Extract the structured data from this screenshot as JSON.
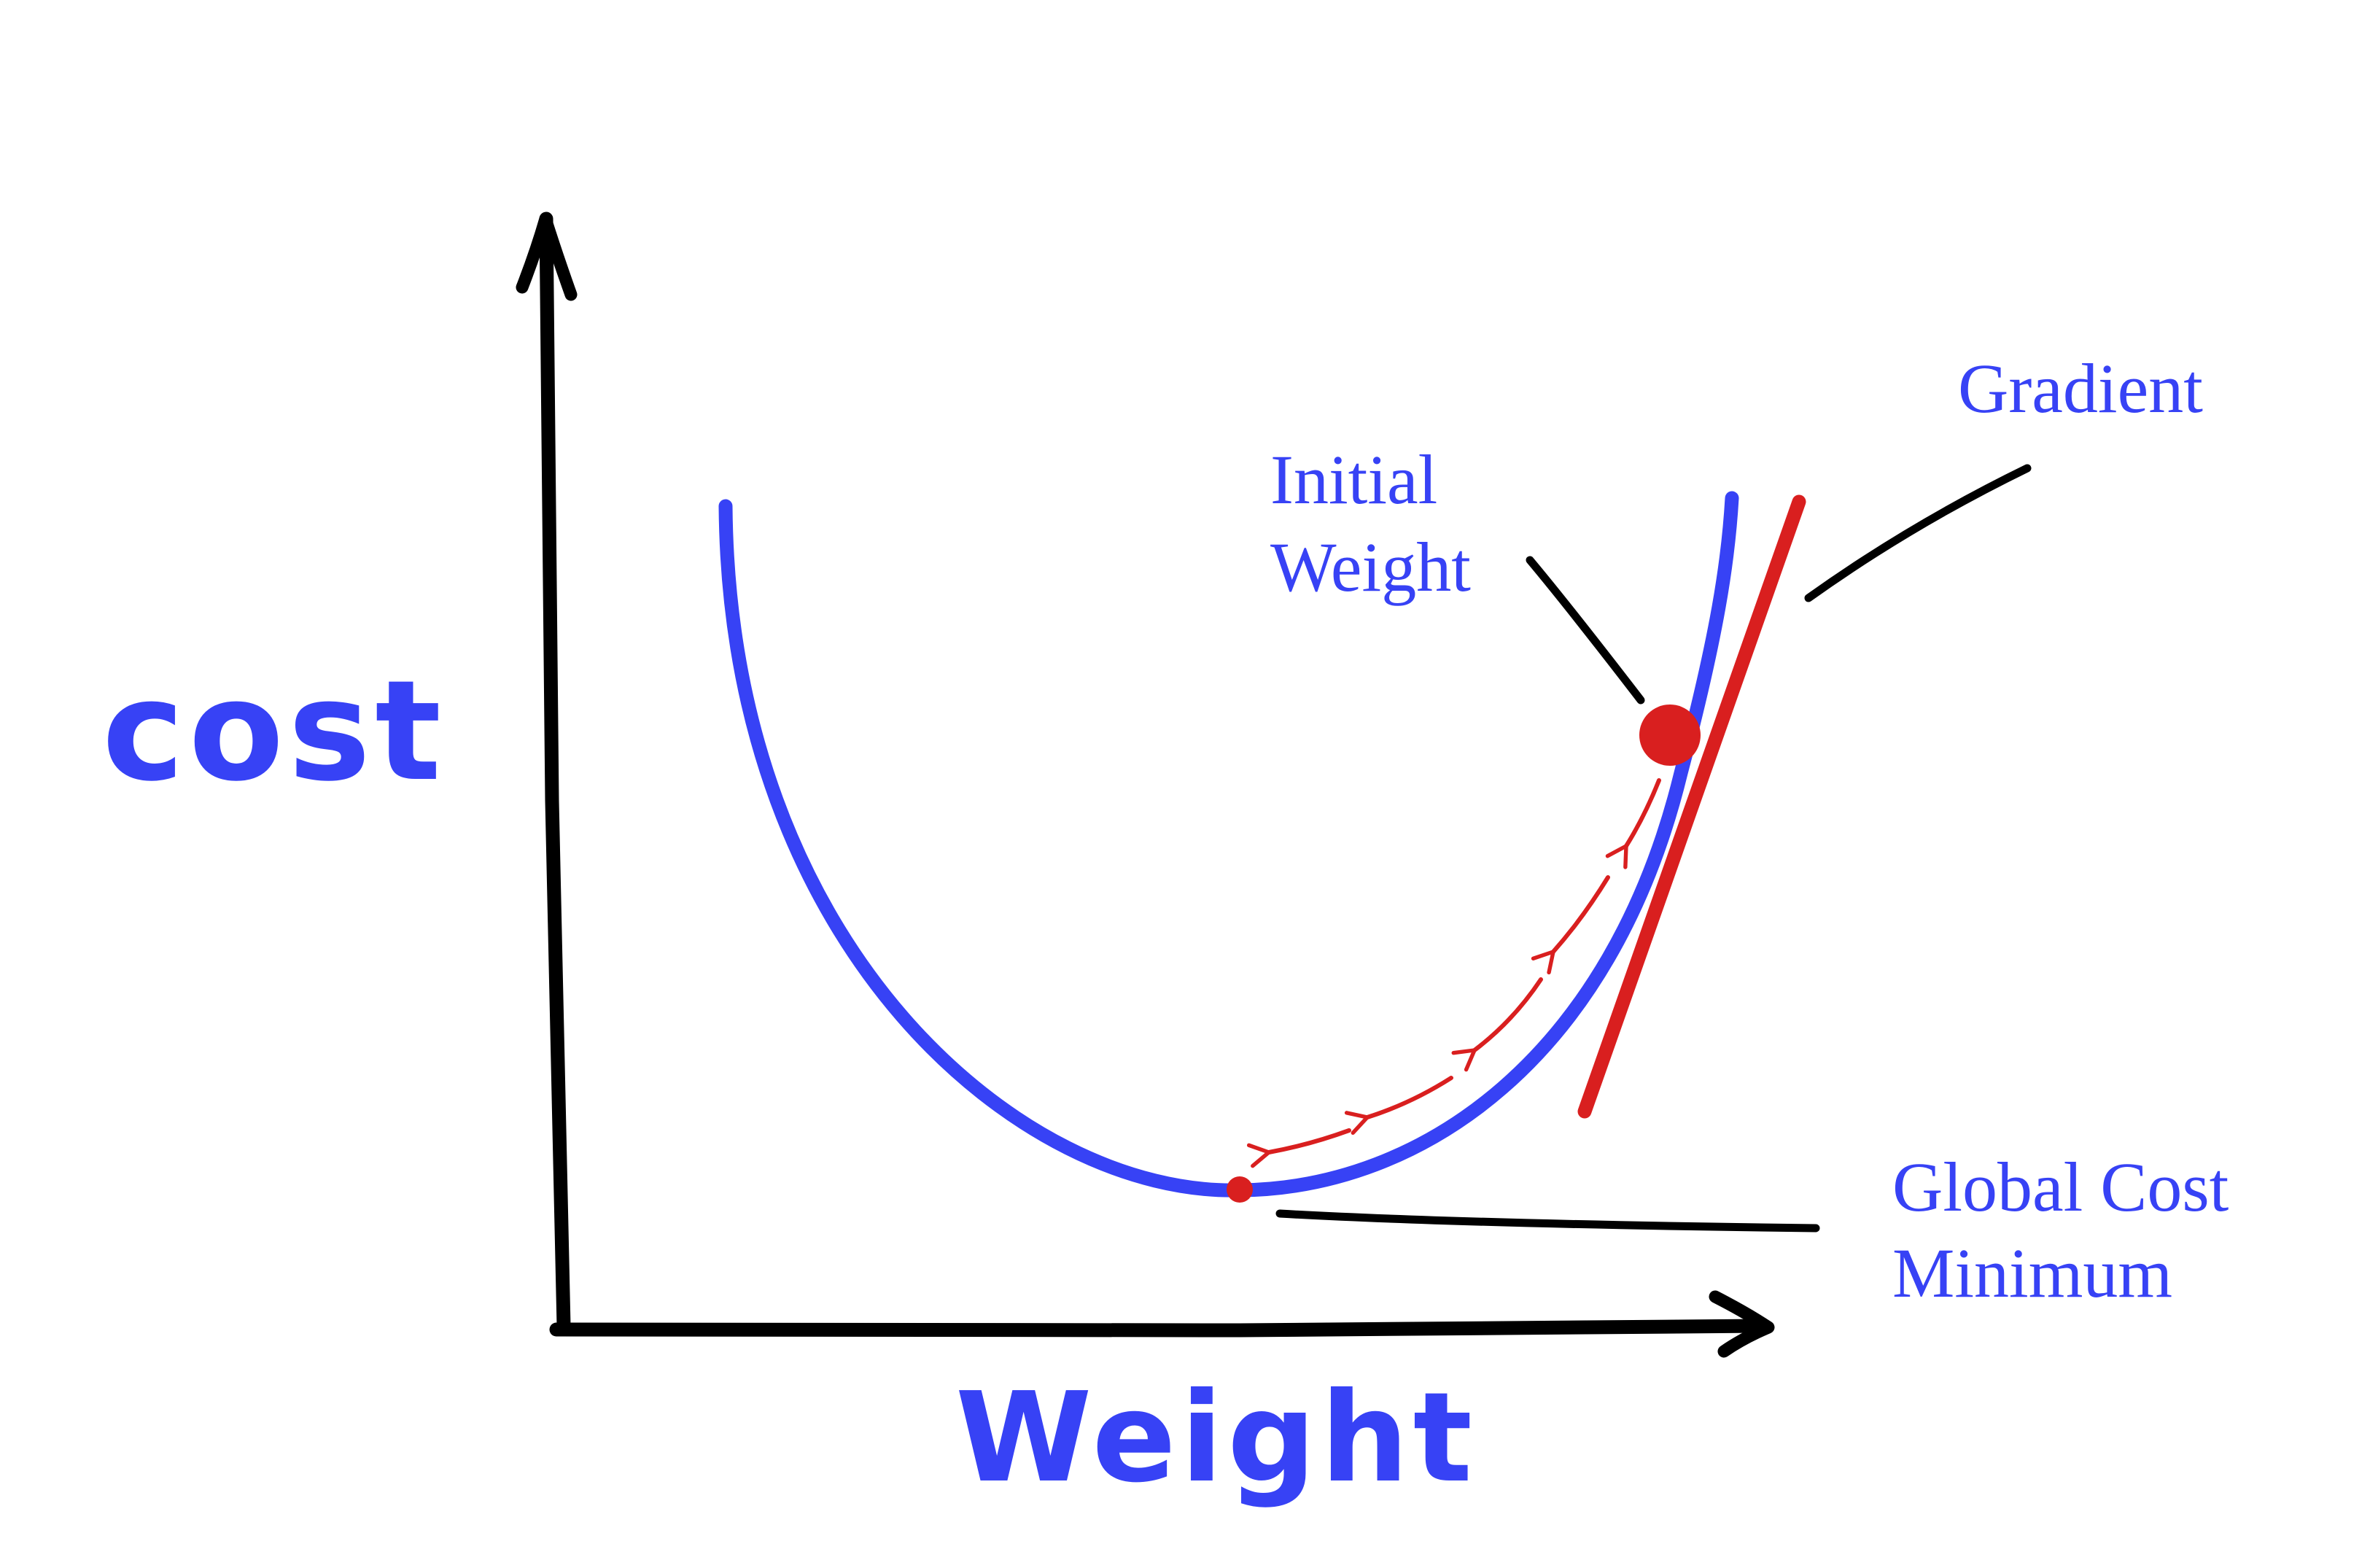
{
  "labels": {
    "y_axis": "cost",
    "x_axis": "Weight",
    "initial_weight_line1": "Initial",
    "initial_weight_line2": "Weight",
    "gradient": "Gradient",
    "global_min_line1": "Global Cost",
    "global_min_line2": "Minimum"
  },
  "colors": {
    "curve": "#3742f5",
    "tangent": "#d91f1f",
    "point": "#d91f1f",
    "axis": "#000000",
    "label": "#3742f5",
    "leader": "#000000"
  },
  "diagram": {
    "descent_steps": 4
  }
}
